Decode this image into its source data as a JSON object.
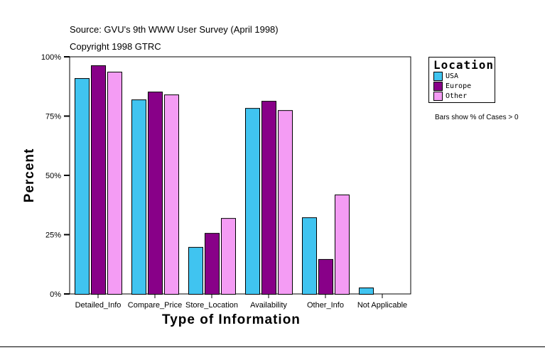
{
  "chart_data": {
    "type": "bar",
    "subtitle_lines": [
      "Source: GVU's 9th WWW User Survey (April 1998)",
      "Copyright 1998 GTRC"
    ],
    "xlabel": "Type of Information",
    "ylabel": "Percent",
    "ylim": [
      0,
      100
    ],
    "yticks": [
      0,
      25,
      50,
      75,
      100
    ],
    "ytick_labels": [
      "0%",
      "25%",
      "50%",
      "75%",
      "100%"
    ],
    "categories": [
      "Detailed_Info",
      "Compare_Price",
      "Store_Location",
      "Availability",
      "Other_Info",
      "Not Applicable"
    ],
    "series": [
      {
        "name": "USA",
        "color": "#40C4F0",
        "values": [
          91.0,
          82.0,
          19.8,
          78.4,
          32.3,
          2.7
        ]
      },
      {
        "name": "Europe",
        "color": "#880088",
        "values": [
          96.4,
          85.3,
          25.7,
          81.4,
          14.7,
          0
        ]
      },
      {
        "name": "Other",
        "color": "#F49CF4",
        "values": [
          93.7,
          84.1,
          32.0,
          77.5,
          41.9,
          0
        ]
      }
    ],
    "legend": {
      "title": "Location",
      "placement": "right"
    },
    "note": "Bars show % of Cases > 0",
    "grid": false
  }
}
